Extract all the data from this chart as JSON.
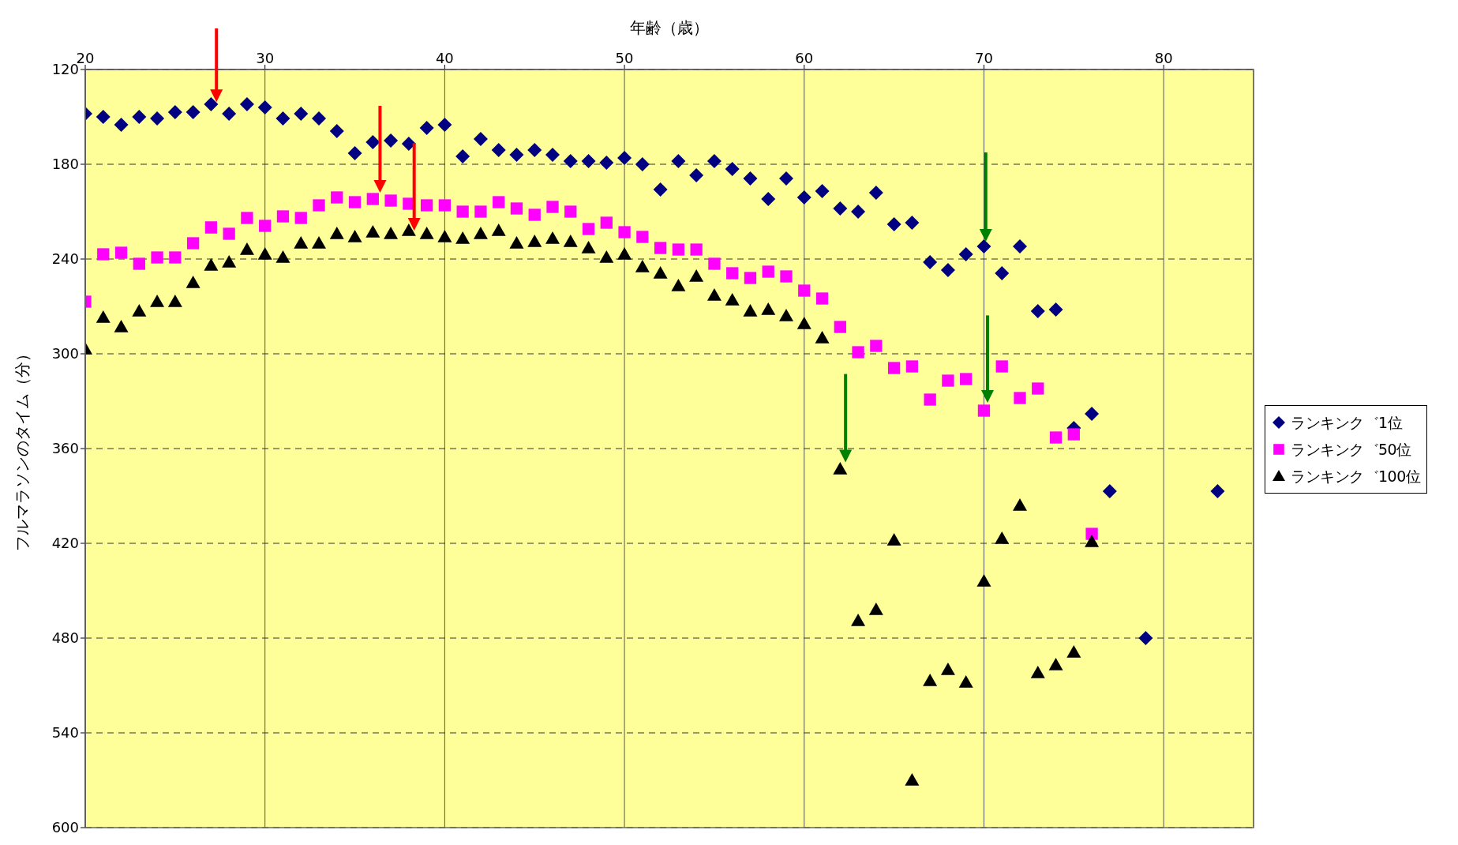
{
  "chart_data": {
    "type": "scatter",
    "xlabel": "年齢（歳）",
    "ylabel": "フルマラソンのタイム（分）",
    "xlim": [
      20,
      85
    ],
    "xticks": [
      20,
      30,
      40,
      50,
      60,
      70,
      80
    ],
    "ylim": [
      600,
      120
    ],
    "yticks": [
      120,
      180,
      240,
      300,
      360,
      420,
      480,
      540,
      600
    ],
    "grid": true,
    "legend": "right",
    "series": [
      {
        "name": "ランキンク゛1位",
        "color": "#000080",
        "marker": "diamond",
        "x": [
          20,
          21,
          22,
          23,
          24,
          25,
          26,
          27,
          28,
          29,
          30,
          31,
          32,
          33,
          34,
          35,
          36,
          37,
          38,
          39,
          40,
          41,
          42,
          43,
          44,
          45,
          46,
          47,
          48,
          49,
          50,
          51,
          52,
          53,
          54,
          55,
          56,
          57,
          58,
          59,
          60,
          61,
          62,
          63,
          64,
          65,
          66,
          67,
          68,
          69,
          70,
          71,
          72,
          73,
          74,
          75,
          76,
          77,
          79,
          83
        ],
        "values": [
          148,
          150,
          155,
          150,
          151,
          147,
          147,
          142,
          148,
          142,
          144,
          151,
          148,
          151,
          159,
          173,
          166,
          165,
          167,
          157,
          155,
          175,
          164,
          171,
          174,
          171,
          174,
          178,
          178,
          179,
          176,
          180,
          196,
          178,
          187,
          178,
          183,
          189,
          202,
          189,
          201,
          197,
          208,
          210,
          198,
          218,
          217,
          242,
          247,
          237,
          232,
          249,
          232,
          273,
          272,
          347,
          338,
          387,
          480,
          387
        ]
      },
      {
        "name": "ランキンク゛50位",
        "color": "#ff00ff",
        "marker": "square",
        "x": [
          20,
          21,
          22,
          23,
          24,
          25,
          26,
          27,
          28,
          29,
          30,
          31,
          32,
          33,
          34,
          35,
          36,
          37,
          38,
          39,
          40,
          41,
          42,
          43,
          44,
          45,
          46,
          47,
          48,
          49,
          50,
          51,
          52,
          53,
          54,
          55,
          56,
          57,
          58,
          59,
          60,
          61,
          62,
          63,
          64,
          65,
          66,
          67,
          68,
          69,
          70,
          71,
          72,
          73,
          74,
          75,
          76
        ],
        "values": [
          267,
          237,
          236,
          243,
          239,
          239,
          230,
          220,
          224,
          214,
          219,
          213,
          214,
          206,
          201,
          204,
          202,
          203,
          205,
          206,
          206,
          210,
          210,
          204,
          208,
          212,
          207,
          210,
          221,
          217,
          223,
          226,
          233,
          234,
          234,
          243,
          249,
          252,
          248,
          251,
          260,
          265,
          283,
          299,
          295,
          309,
          308,
          329,
          317,
          316,
          336,
          308,
          328,
          322,
          353,
          351,
          414
        ]
      },
      {
        "name": "ランキンク゛100位",
        "color": "#000000",
        "marker": "triangle",
        "x": [
          20,
          21,
          22,
          23,
          24,
          25,
          26,
          27,
          28,
          29,
          30,
          31,
          32,
          33,
          34,
          35,
          36,
          37,
          38,
          39,
          40,
          41,
          42,
          43,
          44,
          45,
          46,
          47,
          48,
          49,
          50,
          51,
          52,
          53,
          54,
          55,
          56,
          57,
          58,
          59,
          60,
          61,
          62,
          63,
          64,
          65,
          66,
          67,
          68,
          69,
          70,
          71,
          72,
          73,
          74,
          75,
          76
        ],
        "values": [
          297,
          277,
          283,
          273,
          267,
          267,
          255,
          244,
          242,
          234,
          237,
          239,
          230,
          230,
          224,
          226,
          223,
          224,
          222,
          224,
          226,
          227,
          224,
          222,
          230,
          229,
          227,
          229,
          233,
          239,
          237,
          245,
          249,
          257,
          251,
          263,
          266,
          273,
          272,
          276,
          281,
          290,
          373,
          469,
          462,
          418,
          570,
          507,
          500,
          508,
          444,
          417,
          396,
          502,
          497,
          489,
          419
        ]
      }
    ]
  }
}
